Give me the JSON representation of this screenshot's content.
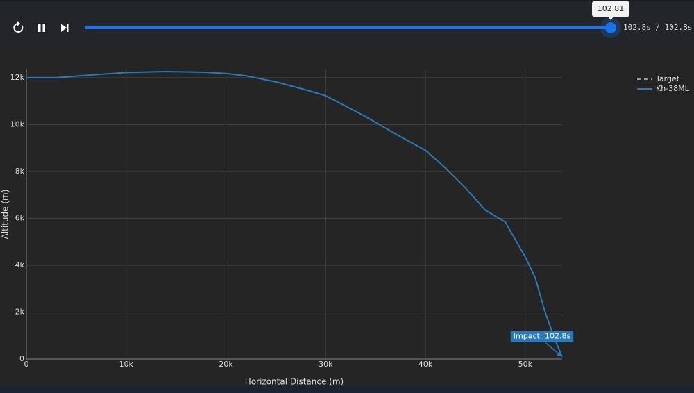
{
  "player": {
    "slider_value": 102.81,
    "slider_lim": [
      0,
      102.81
    ],
    "time_display": "102.8s / 102.8s"
  },
  "chart_data": {
    "type": "line",
    "xlabel": "Horizontal Distance (m)",
    "ylabel": "Altitude (m)",
    "xlim": [
      0,
      53700
    ],
    "ylim": [
      0,
      12350
    ],
    "xticks": [
      {
        "value": 0,
        "label": "0"
      },
      {
        "value": 10000,
        "label": "10k"
      },
      {
        "value": 20000,
        "label": "20k"
      },
      {
        "value": 30000,
        "label": "30k"
      },
      {
        "value": 40000,
        "label": "40k"
      },
      {
        "value": 50000,
        "label": "50k"
      }
    ],
    "yticks": [
      {
        "value": 0,
        "label": "0"
      },
      {
        "value": 2000,
        "label": "2k"
      },
      {
        "value": 4000,
        "label": "4k"
      },
      {
        "value": 6000,
        "label": "6k"
      },
      {
        "value": 8000,
        "label": "8k"
      },
      {
        "value": 10000,
        "label": "10k"
      },
      {
        "value": 12000,
        "label": "12k"
      }
    ],
    "grid": true,
    "series": [
      {
        "name": "Target",
        "color": "#999999",
        "dash": true,
        "x": [],
        "y": []
      },
      {
        "name": "Kh-38ML",
        "color": "#2a7ab8",
        "dash": false,
        "x": [
          0,
          3000,
          6000,
          10000,
          14000,
          18000,
          20000,
          22000,
          25000,
          28000,
          30000,
          34000,
          37000,
          40000,
          42000,
          44000,
          46000,
          48000,
          50000,
          51000,
          52000,
          53000,
          53700
        ],
        "y": [
          12000,
          12000,
          12100,
          12220,
          12260,
          12230,
          12180,
          12080,
          11820,
          11480,
          11230,
          10340,
          9600,
          8900,
          8150,
          7300,
          6350,
          5840,
          4355,
          3470,
          1985,
          800,
          100
        ]
      }
    ],
    "annotation": {
      "text": "Impact: 102.8s",
      "x": 53700,
      "y": 100
    }
  }
}
